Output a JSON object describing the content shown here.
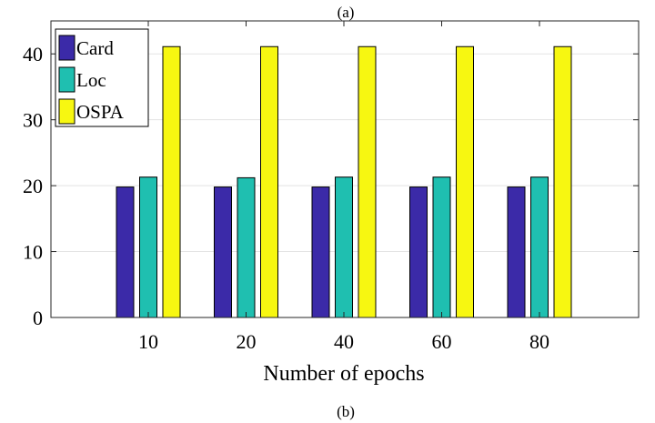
{
  "top_label": "(a)",
  "bottom_label": "(b)",
  "chart_data": {
    "type": "bar",
    "categories": [
      "10",
      "20",
      "40",
      "60",
      "80"
    ],
    "series": [
      {
        "name": "Card",
        "color": "#3b2aa8",
        "values": [
          19.8,
          19.8,
          19.8,
          19.8,
          19.8
        ]
      },
      {
        "name": "Loc",
        "color": "#1fbfb0",
        "values": [
          21.3,
          21.2,
          21.3,
          21.3,
          21.3
        ]
      },
      {
        "name": "OSPA",
        "color": "#f7f711",
        "values": [
          41.1,
          41.1,
          41.1,
          41.1,
          41.1
        ]
      }
    ],
    "title": "",
    "xlabel": "Number of epochs",
    "ylabel": "",
    "ylim": [
      0,
      45
    ],
    "yticks": [
      0,
      10,
      20,
      30,
      40
    ],
    "grid": "horizontal",
    "legend_position": "top-left"
  }
}
